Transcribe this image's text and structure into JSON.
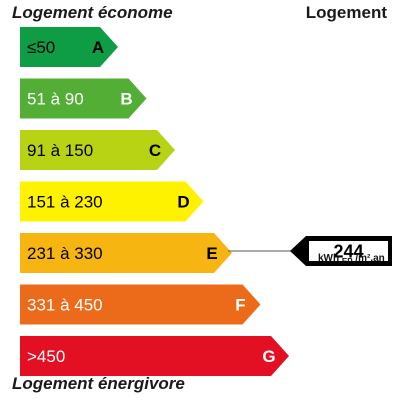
{
  "header": {
    "left": "Logement économe",
    "right": "Logement"
  },
  "footer": {
    "label": "Logement énergivore"
  },
  "classes": [
    {
      "letter": "A",
      "range": "≤50",
      "color": "#0e9d45",
      "text_color": "#000000"
    },
    {
      "letter": "B",
      "range": "51 à 90",
      "color": "#53ae36",
      "text_color": "#ffffff"
    },
    {
      "letter": "C",
      "range": "91 à 150",
      "color": "#b8d313",
      "text_color": "#000000"
    },
    {
      "letter": "D",
      "range": "151 à 230",
      "color": "#fff200",
      "text_color": "#000000"
    },
    {
      "letter": "E",
      "range": "231 à 330",
      "color": "#f7b512",
      "text_color": "#000000"
    },
    {
      "letter": "F",
      "range": "331 à 450",
      "color": "#ec6b1a",
      "text_color": "#ffffff"
    },
    {
      "letter": "G",
      "range": ">450",
      "color": "#e30f22",
      "text_color": "#ffffff"
    }
  ],
  "indicator": {
    "value": "244",
    "class": "E",
    "unit_main": "kWh",
    "unit_sub": "EP",
    "unit_tail": "/m².an"
  }
}
